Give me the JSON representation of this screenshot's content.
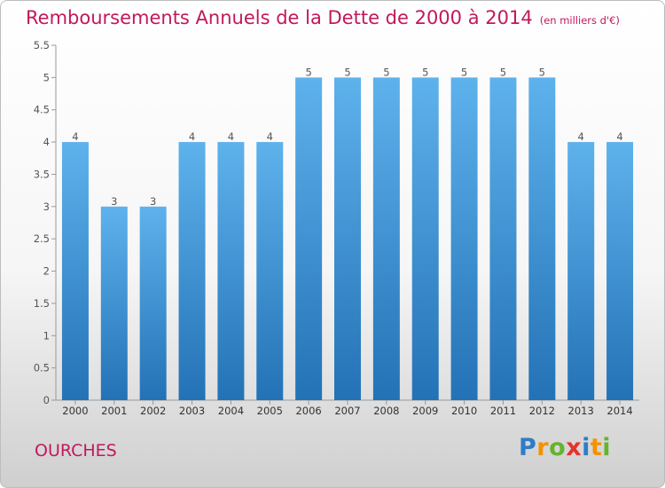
{
  "header": {
    "title": "Remboursements Annuels de la Dette de 2000 à 2014",
    "unit": "(en milliers d'€)"
  },
  "footer": {
    "place": "OURCHES",
    "logo": [
      "P",
      "r",
      "o",
      "x",
      "i",
      "t",
      "i"
    ],
    "logo_colors": [
      "#2e7cc8",
      "#f39200",
      "#65b32e",
      "#e6332a",
      "#2e7cc8",
      "#f39200",
      "#65b32e"
    ]
  },
  "chart_data": {
    "type": "bar",
    "title": "Remboursements Annuels de la Dette de 2000 à 2014",
    "xlabel": "",
    "ylabel": "",
    "categories": [
      "2000",
      "2001",
      "2002",
      "2003",
      "2004",
      "2005",
      "2006",
      "2007",
      "2008",
      "2009",
      "2010",
      "2011",
      "2012",
      "2013",
      "2014"
    ],
    "values": [
      4,
      3,
      3,
      4,
      4,
      4,
      5,
      5,
      5,
      5,
      5,
      5,
      5,
      4,
      4
    ],
    "data_labels": [
      "4",
      "3",
      "3",
      "4",
      "4",
      "4",
      "5",
      "5",
      "5",
      "5",
      "5",
      "5",
      "5",
      "4",
      "4"
    ],
    "ylim": [
      0,
      5.5
    ],
    "y_ticks": [
      "0",
      "0.5",
      "1",
      "1.5",
      "2",
      "2.5",
      "3",
      "3.5",
      "4",
      "4.5",
      "5",
      "5.5"
    ],
    "grid": false,
    "bar_color": "#3a93d8"
  }
}
